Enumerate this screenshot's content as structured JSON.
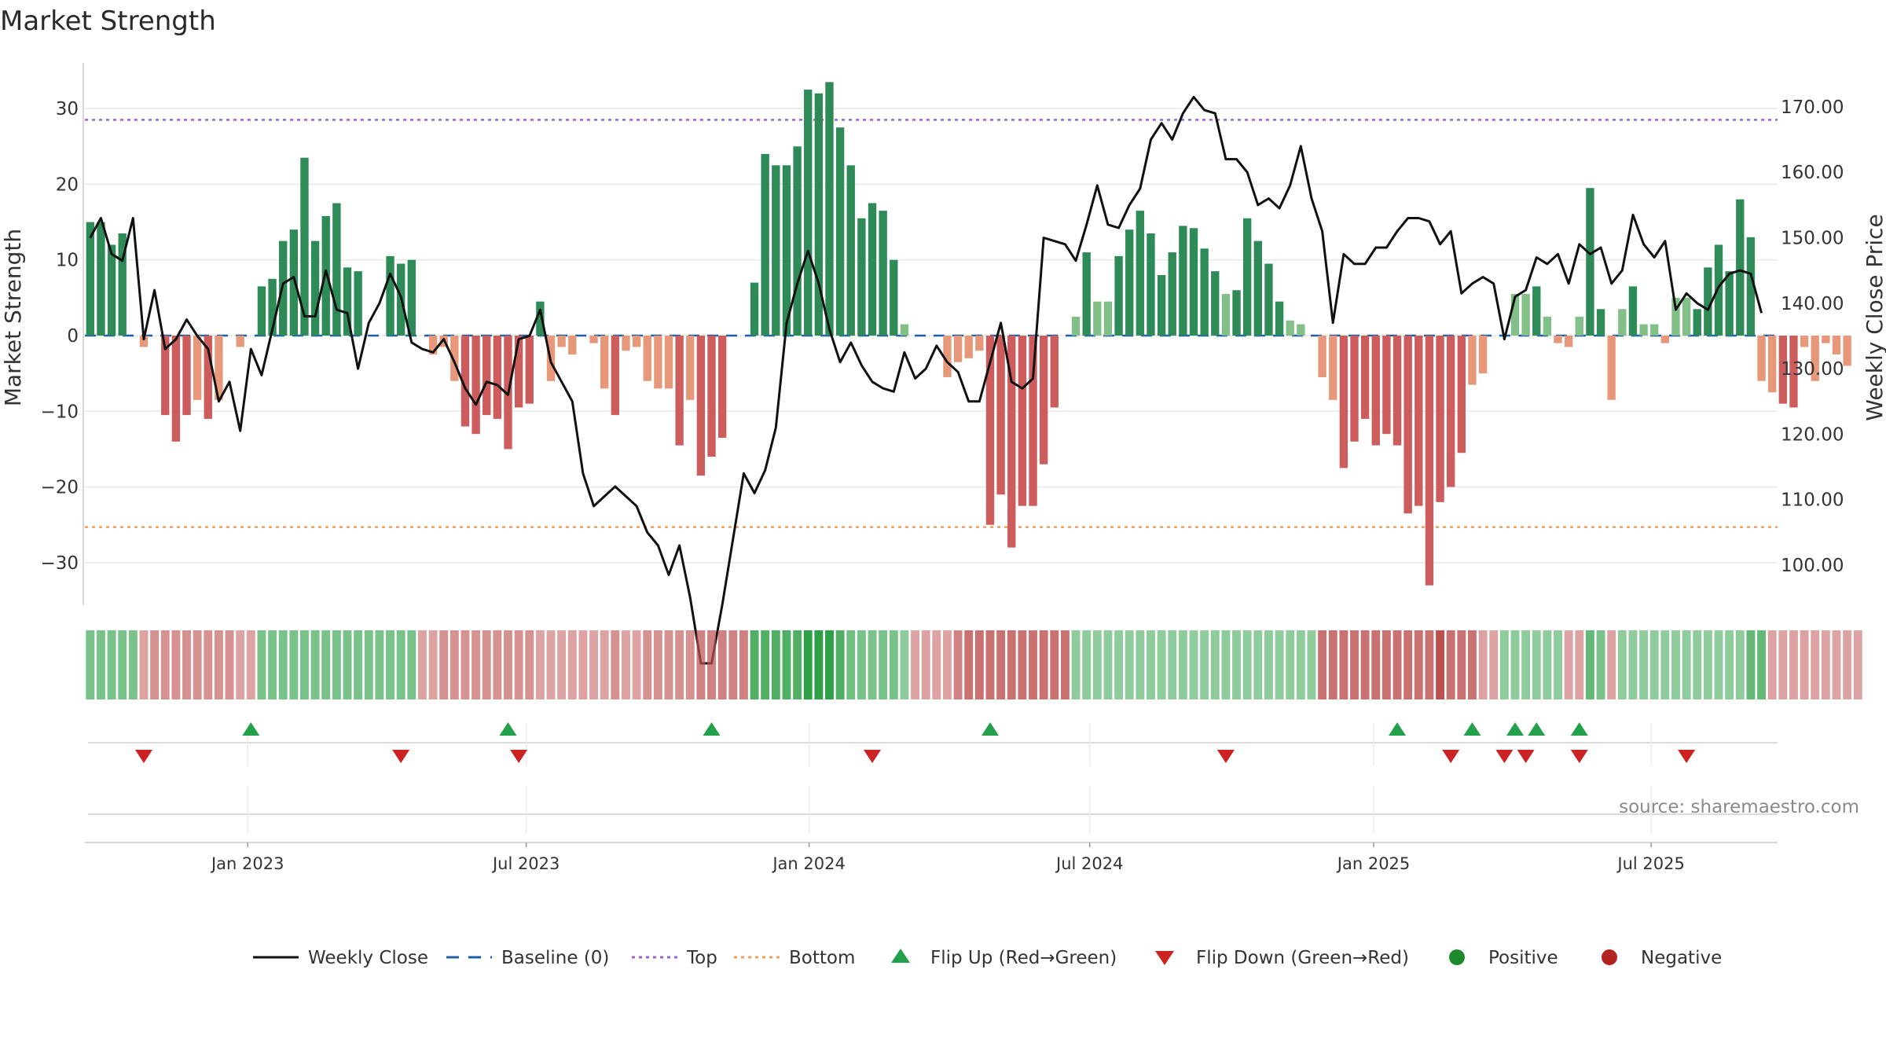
{
  "chart_data": {
    "type": "bar+line",
    "title": "Market Strength",
    "ylabel_left": "Market Strength",
    "ylabel_right": "Weekly Close Price",
    "source": "source: sharemaestro.com",
    "ylim_left": [
      -36,
      36
    ],
    "ylim_right": [
      92,
      176
    ],
    "yticks_left": [
      {
        "value": 30,
        "label": "30"
      },
      {
        "value": 20,
        "label": "20"
      },
      {
        "value": 10,
        "label": "10"
      },
      {
        "value": 0,
        "label": "0"
      },
      {
        "value": -10,
        "label": "−10"
      },
      {
        "value": -20,
        "label": "−20"
      },
      {
        "value": -30,
        "label": "−30"
      }
    ],
    "yticks_right": [
      {
        "value": 170,
        "label": "170.00"
      },
      {
        "value": 160,
        "label": "160.00"
      },
      {
        "value": 150,
        "label": "150.00"
      },
      {
        "value": 140,
        "label": "140.00"
      },
      {
        "value": 130,
        "label": "130.00"
      },
      {
        "value": 120,
        "label": "120.00"
      },
      {
        "value": 110,
        "label": "110.00"
      },
      {
        "value": 100,
        "label": "100.00"
      }
    ],
    "xticks": [
      {
        "week": 14.7,
        "label": "Jan 2023"
      },
      {
        "week": 40.7,
        "label": "Jul 2023"
      },
      {
        "week": 67.1,
        "label": "Jan 2024"
      },
      {
        "week": 93.3,
        "label": "Jul 2024"
      },
      {
        "week": 119.8,
        "label": "Jan 2025"
      },
      {
        "week": 145.7,
        "label": "Jul 2025"
      }
    ],
    "weeks_total": 158,
    "top_level": 28.5,
    "bottom_level": -25.3,
    "baseline": 0,
    "strength": [
      15,
      15,
      12,
      13.5,
      0,
      -1.5,
      0,
      -10.5,
      -14,
      -10.5,
      -8.5,
      -11,
      -8.5,
      0,
      -1.5,
      0,
      6.5,
      7.5,
      12.5,
      14,
      23.5,
      12.5,
      15.8,
      17.5,
      9,
      8.5,
      0,
      0,
      10.5,
      9.5,
      10,
      0,
      -2.5,
      -1.5,
      -6,
      -12,
      -13,
      -10.5,
      -11,
      -15,
      -9.5,
      -9,
      4.5,
      -6,
      -1.5,
      -2.5,
      0,
      -1,
      -7,
      -10.5,
      -2,
      -1.5,
      -6,
      -7,
      -7,
      -14.5,
      -8.5,
      -18.5,
      -16,
      -13.5,
      0,
      0,
      7,
      24,
      22.5,
      22.5,
      25,
      32.5,
      32,
      33.5,
      27.5,
      22.5,
      15.5,
      17.5,
      16.5,
      10,
      1.5,
      0,
      0,
      0,
      -5.5,
      -3.5,
      -3,
      -2,
      -25,
      -21,
      -28,
      -22.5,
      -22.5,
      -17,
      -9.5,
      0,
      2.5,
      11,
      4.5,
      4.5,
      10.5,
      14,
      16.5,
      13.5,
      8,
      11,
      14.5,
      14.2,
      11.5,
      8.5,
      5.5,
      6,
      15.5,
      12.5,
      9.5,
      4.5,
      2,
      1.5,
      0,
      -5.5,
      -8.5,
      -17.5,
      -14,
      -11,
      -14.5,
      -13,
      -14.5,
      -23.5,
      -22.5,
      -33,
      -22,
      -20,
      -15.5,
      -6.5,
      -5,
      0,
      0,
      5.5,
      5.5,
      6.5,
      2.5,
      -1,
      -1.5,
      2.5,
      19.5,
      3.5,
      -8.5,
      3.5,
      6.5,
      1.5,
      1.5,
      -1,
      5,
      5,
      3.5,
      9,
      12,
      8.5,
      18,
      13,
      -6,
      -7.5,
      -9,
      -9.5,
      -1.5,
      -6,
      -1,
      -2.5,
      -4
    ],
    "weekly_close": [
      150,
      153,
      147.5,
      146.5,
      153,
      134.5,
      142,
      133,
      134.5,
      137.5,
      135,
      133,
      125,
      128,
      120.5,
      133,
      129,
      136,
      143,
      144,
      138,
      138,
      145,
      139,
      138.5,
      130,
      137,
      140,
      144.5,
      141,
      134,
      133,
      132.5,
      134.5,
      131,
      127,
      124.5,
      128,
      127.5,
      126,
      134.5,
      135,
      139,
      131,
      128,
      125,
      114,
      109,
      110.5,
      112,
      110.5,
      109,
      105,
      103,
      98.5,
      103,
      95,
      85,
      85,
      94,
      104,
      114,
      111,
      114.5,
      121,
      137,
      143,
      148,
      143,
      136,
      131,
      134,
      130.5,
      128,
      127,
      126.5,
      132.5,
      128.5,
      130,
      133.5,
      131,
      129.5,
      125,
      125,
      131,
      137,
      128,
      127,
      128.5,
      150,
      149.5,
      149,
      146.5,
      152,
      158,
      152,
      151.5,
      155,
      157.5,
      165,
      167.5,
      165,
      169,
      171.5,
      169.5,
      169,
      162,
      162,
      160,
      155,
      156,
      154.5,
      158,
      164,
      156,
      151,
      137,
      147.5,
      146,
      146,
      148.5,
      148.5,
      151,
      153,
      153,
      152.5,
      149,
      151,
      141.5,
      143,
      144,
      143,
      134.5,
      141,
      142,
      147,
      146,
      147.5,
      143,
      149,
      147.5,
      148.5,
      143,
      145,
      153.5,
      149,
      147,
      149.5,
      139,
      141.5,
      140,
      139,
      142.5,
      144.5,
      145,
      144.5,
      138.5
    ],
    "heat_strip": [
      9,
      9,
      9,
      9,
      9,
      -3,
      -4,
      -4,
      -4,
      -4,
      -4,
      -4,
      -4,
      -4,
      -3,
      -3,
      9,
      9,
      9,
      9,
      9,
      9,
      9,
      9,
      9,
      9,
      9,
      9,
      9,
      9,
      9,
      -3,
      -3,
      -4,
      -4,
      -4,
      -4,
      -4,
      -4,
      -4,
      -4,
      -4,
      -3,
      -3,
      -3,
      -3,
      -3,
      -3,
      -3,
      -4,
      -3,
      -3,
      -4,
      -4,
      -4,
      -4,
      -4,
      -5,
      -5,
      -5,
      -5,
      -5,
      15,
      15,
      15,
      15,
      15,
      20,
      20,
      20,
      15,
      10,
      9,
      9,
      9,
      9,
      6,
      -3,
      -3,
      -3,
      -3,
      -5,
      -6,
      -6,
      -6,
      -6,
      -6,
      -6,
      -6,
      -6,
      -6,
      -6,
      6,
      6,
      6,
      6,
      6,
      6,
      6,
      6,
      6,
      6,
      6,
      6,
      6,
      6,
      6,
      6,
      6,
      6,
      6,
      6,
      6,
      6,
      6,
      -6,
      -6,
      -6,
      -6,
      -6,
      -6,
      -6,
      -6,
      -6,
      -6,
      -6,
      -8,
      -6,
      -6,
      -6,
      -3,
      -3,
      6,
      6,
      6,
      6,
      6,
      6,
      -3,
      -3,
      12,
      9,
      -3,
      6,
      6,
      6,
      6,
      6,
      6,
      6,
      6,
      6,
      6,
      6,
      6,
      12,
      12,
      -3,
      -3,
      -3,
      -3,
      -3,
      -3,
      -3,
      -3,
      -3
    ],
    "flip_up_weeks": [
      15,
      39,
      58,
      84,
      122,
      129,
      133,
      135,
      139
    ],
    "flip_down_weeks": [
      5,
      29,
      40,
      73,
      106,
      127,
      132,
      134,
      139,
      149
    ],
    "colors": {
      "strong_positive": "#2e8b57",
      "weak_positive": "#82c087",
      "strong_negative": "#cd5c5c",
      "weak_negative": "#e8987a",
      "top_line": "#9966cc",
      "bottom_line": "#f0a060",
      "baseline": "#1f5fa8",
      "close_line": "#111111",
      "flip_up": "#22a04a",
      "flip_down": "#cc2222",
      "positive": "#1e8a2e",
      "negative": "#b22222"
    },
    "legend": [
      {
        "key": "close",
        "label": "Weekly Close"
      },
      {
        "key": "baseline",
        "label": "Baseline (0)"
      },
      {
        "key": "top",
        "label": "Top"
      },
      {
        "key": "bottom",
        "label": "Bottom"
      },
      {
        "key": "flip_up",
        "label": "Flip Up (Red→Green)"
      },
      {
        "key": "flip_down",
        "label": "Flip Down (Green→Red)"
      },
      {
        "key": "positive",
        "label": "Positive"
      },
      {
        "key": "negative",
        "label": "Negative"
      }
    ]
  }
}
